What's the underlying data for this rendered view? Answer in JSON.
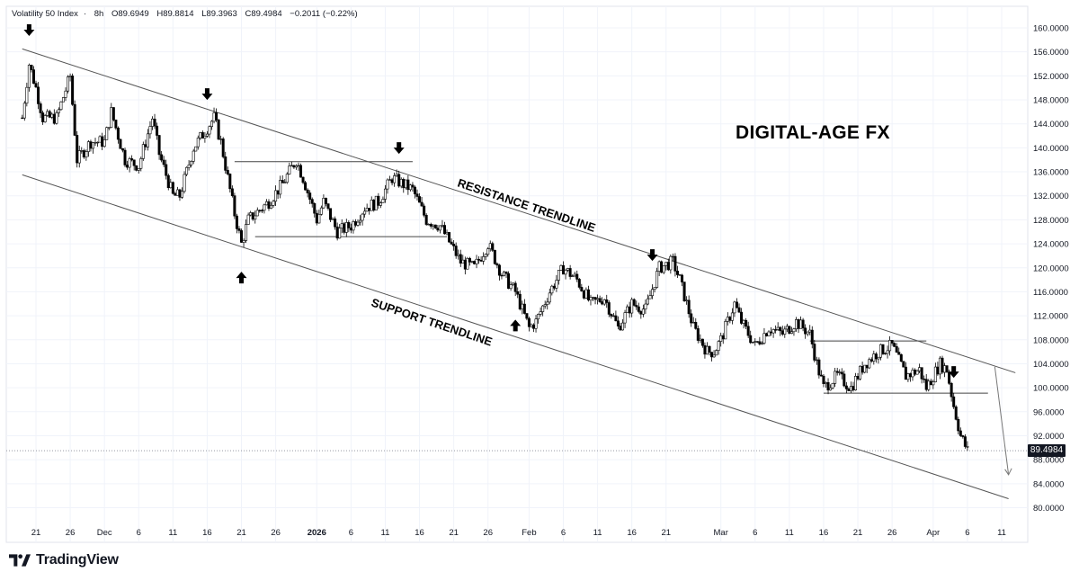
{
  "header": {
    "symbol": "Volatility 50 Index",
    "interval": "8h",
    "open": "O89.6949",
    "high": "H89.8814",
    "low": "L89.3963",
    "close": "C89.4984",
    "change": "−0.2011 (−0.22%)"
  },
  "brand": {
    "name": "TradingView",
    "logo_icon": "tradingview-logo-icon"
  },
  "watermark": "DIGITAL-AGE FX",
  "last_price_label": "89.4984",
  "colors": {
    "candle_up": "#ffffff",
    "candle_down": "#000000",
    "wick": "#000000",
    "trendline": "#555555",
    "grid": "#f0f3fa",
    "last_price_line": "#9598a1"
  },
  "chart_data": {
    "type": "candlestick",
    "title": "",
    "y_axis_ticks": [
      "160.0000",
      "156.0000",
      "152.0000",
      "148.0000",
      "144.0000",
      "140.0000",
      "136.0000",
      "132.0000",
      "128.0000",
      "124.0000",
      "120.0000",
      "116.0000",
      "112.0000",
      "108.0000",
      "104.0000",
      "100.0000",
      "96.0000",
      "92.0000",
      "88.0000",
      "84.0000",
      "80.0000"
    ],
    "ylim": [
      78,
      162
    ],
    "x_axis_ticks": [
      "21",
      "26",
      "Dec",
      "6",
      "11",
      "16",
      "21",
      "26",
      "2026",
      "6",
      "11",
      "16",
      "21",
      "26",
      "Feb",
      "6",
      "11",
      "16",
      "21",
      "Mar",
      "6",
      "11",
      "16",
      "21",
      "26",
      "Apr",
      "6",
      "11"
    ],
    "x_dates": [
      "2025-11-21",
      "2025-11-26",
      "2025-12-01",
      "2025-12-06",
      "2025-12-11",
      "2025-12-16",
      "2025-12-21",
      "2025-12-26",
      "2026-01-01",
      "2026-01-06",
      "2026-01-11",
      "2026-01-16",
      "2026-01-21",
      "2026-01-26",
      "2026-02-01",
      "2026-02-06",
      "2026-02-11",
      "2026-02-16",
      "2026-02-21",
      "2026-03-01",
      "2026-03-06",
      "2026-03-11",
      "2026-03-16",
      "2026-03-21",
      "2026-03-26",
      "2026-04-01",
      "2026-04-06",
      "2026-04-11"
    ],
    "price_path": [
      [
        "2025-11-19",
        145
      ],
      [
        "2025-11-20",
        154
      ],
      [
        "2025-11-21",
        150
      ],
      [
        "2025-11-22",
        145
      ],
      [
        "2025-11-24",
        145
      ],
      [
        "2025-11-26",
        152
      ],
      [
        "2025-11-27",
        138
      ],
      [
        "2025-11-29",
        141
      ],
      [
        "2025-12-01",
        141
      ],
      [
        "2025-12-02",
        146
      ],
      [
        "2025-12-04",
        138
      ],
      [
        "2025-12-06",
        137
      ],
      [
        "2025-12-08",
        145
      ],
      [
        "2025-12-09",
        139
      ],
      [
        "2025-12-11",
        132
      ],
      [
        "2025-12-12",
        132
      ],
      [
        "2025-12-14",
        140
      ],
      [
        "2025-12-17",
        145
      ],
      [
        "2025-12-18",
        141
      ],
      [
        "2025-12-20",
        129
      ],
      [
        "2025-12-21",
        124
      ],
      [
        "2025-12-22",
        128
      ],
      [
        "2025-12-24",
        130
      ],
      [
        "2025-12-25",
        131
      ],
      [
        "2025-12-27",
        134
      ],
      [
        "2025-12-29",
        138
      ],
      [
        "2025-12-30",
        135
      ],
      [
        "2026-01-01",
        128
      ],
      [
        "2026-01-02",
        131
      ],
      [
        "2026-01-04",
        126
      ],
      [
        "2026-01-06",
        127
      ],
      [
        "2026-01-08",
        130
      ],
      [
        "2026-01-10",
        131
      ],
      [
        "2026-01-12",
        135
      ],
      [
        "2026-01-15",
        133
      ],
      [
        "2026-01-17",
        128
      ],
      [
        "2026-01-19",
        127
      ],
      [
        "2026-01-21",
        123
      ],
      [
        "2026-01-22",
        121
      ],
      [
        "2026-01-24",
        120
      ],
      [
        "2026-01-26",
        124
      ],
      [
        "2026-01-28",
        119
      ],
      [
        "2026-01-30",
        116
      ],
      [
        "2026-02-01",
        110
      ],
      [
        "2026-02-02",
        111
      ],
      [
        "2026-02-04",
        116
      ],
      [
        "2026-02-06",
        120
      ],
      [
        "2026-02-08",
        118
      ],
      [
        "2026-02-10",
        114
      ],
      [
        "2026-02-12",
        115
      ],
      [
        "2026-02-14",
        110
      ],
      [
        "2026-02-16",
        114
      ],
      [
        "2026-02-18",
        113
      ],
      [
        "2026-02-20",
        120
      ],
      [
        "2026-02-22",
        121
      ],
      [
        "2026-02-23",
        118
      ],
      [
        "2026-02-25",
        110
      ],
      [
        "2026-02-27",
        106
      ],
      [
        "2026-02-28",
        106
      ],
      [
        "2026-03-01",
        108
      ],
      [
        "2026-03-03",
        114
      ],
      [
        "2026-03-04",
        111
      ],
      [
        "2026-03-06",
        107
      ],
      [
        "2026-03-08",
        110
      ],
      [
        "2026-03-10",
        109
      ],
      [
        "2026-03-12",
        111
      ],
      [
        "2026-03-14",
        109
      ],
      [
        "2026-03-15",
        104
      ],
      [
        "2026-03-16",
        100
      ],
      [
        "2026-03-18",
        102
      ],
      [
        "2026-03-20",
        100
      ],
      [
        "2026-03-22",
        104
      ],
      [
        "2026-03-24",
        106
      ],
      [
        "2026-03-26",
        107
      ],
      [
        "2026-03-28",
        102
      ],
      [
        "2026-03-30",
        103
      ],
      [
        "2026-03-31",
        100
      ],
      [
        "2026-04-02",
        104
      ],
      [
        "2026-04-03",
        103
      ],
      [
        "2026-04-04",
        97
      ],
      [
        "2026-04-05",
        92
      ],
      [
        "2026-04-06",
        89.5
      ]
    ],
    "trendlines": [
      {
        "label": "RESISTANCE TRENDLINE",
        "start": [
          "2025-11-19",
          156.5
        ],
        "end": [
          "2026-04-13",
          102.5
        ]
      },
      {
        "label": "SUPPORT TRENDLINE",
        "start": [
          "2025-11-19",
          135.5
        ],
        "end": [
          "2026-04-12",
          81.5
        ]
      }
    ],
    "horizontal_levels": [
      {
        "start": "2025-12-20",
        "end": "2026-01-15",
        "price": 137.7
      },
      {
        "start": "2025-12-23",
        "end": "2026-01-20",
        "price": 125.2
      },
      {
        "start": "2026-03-14",
        "end": "2026-03-31",
        "price": 107.8
      },
      {
        "start": "2026-03-16",
        "end": "2026-04-09",
        "price": 99.1
      }
    ],
    "arrows_down": [
      "2025-11-20",
      "2025-12-16",
      "2026-01-13",
      "2026-02-19",
      "2026-04-04"
    ],
    "arrows_up": [
      "2025-12-21",
      "2026-01-30"
    ],
    "projection_arrow": {
      "start": [
        "2026-04-10",
        103.5
      ],
      "end": [
        "2026-04-12",
        85.5
      ]
    },
    "last_price": 89.4984
  }
}
